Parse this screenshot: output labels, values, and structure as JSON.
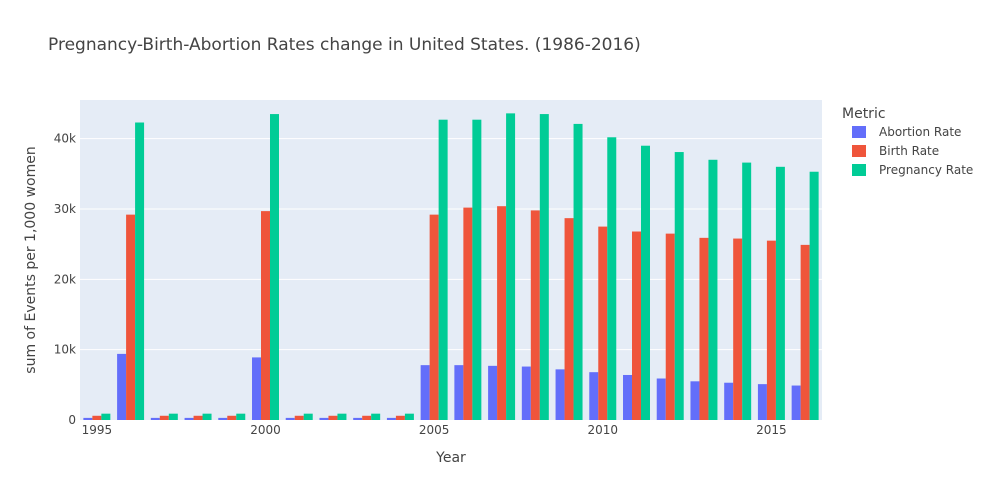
{
  "chart_data": {
    "type": "bar",
    "title": "Pregnancy-Birth-Abortion Rates change in United States. (1986-2016)",
    "xlabel": "Year",
    "ylabel": "sum of Events per 1,000 women",
    "x": [
      1995,
      1996,
      1997,
      1998,
      1999,
      2000,
      2001,
      2002,
      2003,
      2004,
      2005,
      2006,
      2007,
      2008,
      2009,
      2010,
      2011,
      2012,
      2013,
      2014,
      2015,
      2016
    ],
    "x_ticks": [
      1995,
      2000,
      2005,
      2010,
      2015
    ],
    "x_tick_labels": [
      "1995",
      "2000",
      "2005",
      "2010",
      "2015"
    ],
    "xlim": [
      1994.5,
      2016.5
    ],
    "ylim": [
      0,
      45500
    ],
    "y_ticks": [
      0,
      10000,
      20000,
      30000,
      40000
    ],
    "y_tick_labels": [
      "0",
      "10k",
      "20k",
      "30k",
      "40k"
    ],
    "grid": true,
    "legend_title": "Metric",
    "legend_position": "right",
    "series": [
      {
        "name": "Abortion Rate",
        "color": "#636efa",
        "values": [
          300,
          9400,
          300,
          300,
          300,
          8900,
          300,
          300,
          300,
          300,
          7800,
          7800,
          7700,
          7600,
          7200,
          6800,
          6400,
          5900,
          5500,
          5300,
          5100,
          4900
        ]
      },
      {
        "name": "Birth Rate",
        "color": "#ef553b",
        "values": [
          600,
          29200,
          600,
          600,
          600,
          29700,
          600,
          600,
          600,
          600,
          29200,
          30200,
          30400,
          29800,
          28700,
          27500,
          26800,
          26500,
          25900,
          25800,
          25500,
          24900
        ]
      },
      {
        "name": "Pregnancy Rate",
        "color": "#00cc96",
        "values": [
          900,
          42300,
          900,
          900,
          900,
          43500,
          900,
          900,
          900,
          900,
          42700,
          42700,
          43600,
          43500,
          42100,
          40200,
          39000,
          38100,
          37000,
          36600,
          36000,
          35300
        ]
      }
    ]
  }
}
